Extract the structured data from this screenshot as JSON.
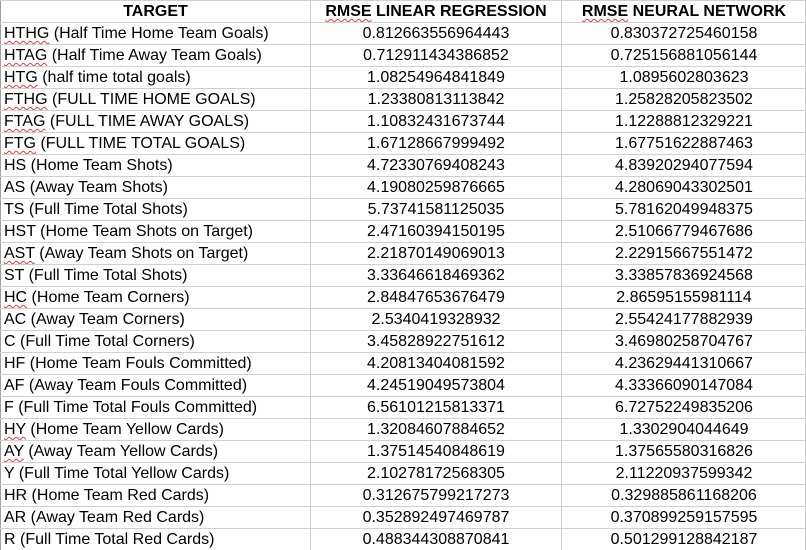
{
  "headers": [
    "TARGET",
    "RMSE LINEAR REGRESSION",
    "RMSE NEURAL NETWORK"
  ],
  "rows": [
    {
      "abbr": "HTHG",
      "desc": " (Half Time Home Team Goals)",
      "lr": "0.812663556964443",
      "nn": "0.830372725460158"
    },
    {
      "abbr": "HTAG",
      "desc": " (Half Time Away Team Goals)",
      "lr": "0.712911434386852",
      "nn": "0.725156881056144"
    },
    {
      "abbr": "HTG",
      "desc": " (half time total goals)",
      "lr": "1.08254964841849",
      "nn": "1.0895602803623"
    },
    {
      "abbr": "FTHG",
      "desc": " (FULL TIME HOME GOALS)",
      "lr": "1.23380813113842",
      "nn": "1.25828205823502"
    },
    {
      "abbr": "FTAG",
      "desc": " (FULL TIME AWAY GOALS)",
      "lr": "1.10832431673744",
      "nn": "1.12288812329221"
    },
    {
      "abbr": "FTG",
      "desc": " (FULL TIME TOTAL GOALS)",
      "lr": "1.67128667999492",
      "nn": "1.67751622887463"
    },
    {
      "abbr": "HS",
      "desc": " (Home Team Shots)",
      "lr": "4.72330769408243",
      "nn": "4.83920294077594"
    },
    {
      "abbr": "AS",
      "desc": " (Away Team Shots)",
      "lr": "4.19080259876665",
      "nn": "4.28069043302501"
    },
    {
      "abbr": "TS",
      "desc": " (Full Time Total Shots)",
      "lr": "5.73741581125035",
      "nn": "5.78162049948375"
    },
    {
      "abbr": "HST",
      "desc": " (Home Team Shots on Target)",
      "lr": "2.47160394150195",
      "nn": "2.51066779467686"
    },
    {
      "abbr": "AST",
      "desc": " (Away Team Shots on Target)",
      "lr": "2.21870149069013",
      "nn": "2.22915667551472"
    },
    {
      "abbr": "ST",
      "desc": " (Full Time Total Shots)",
      "lr": "3.33646618469362",
      "nn": "3.33857836924568"
    },
    {
      "abbr": "HC",
      "desc": " (Home Team Corners)",
      "lr": "2.84847653676479",
      "nn": "2.86595155981114"
    },
    {
      "abbr": "AC",
      "desc": " (Away Team Corners)",
      "lr": "2.5340419328932",
      "nn": "2.55424177882939"
    },
    {
      "abbr": "C",
      "desc": " (Full Time Total Corners)",
      "lr": "3.45828922751612",
      "nn": "3.46980258704767"
    },
    {
      "abbr": "HF",
      "desc": " (Home Team Fouls Committed)",
      "lr": "4.20813404081592",
      "nn": "4.23629441310667"
    },
    {
      "abbr": "AF",
      "desc": " (Away Team Fouls Committed)",
      "lr": "4.24519049573804",
      "nn": "4.33366090147084"
    },
    {
      "abbr": "F",
      "desc": " (Full Time Total Fouls Committed)",
      "lr": "6.56101215813371",
      "nn": "6.72752249835206"
    },
    {
      "abbr": "HY",
      "desc": " (Home Team Yellow Cards)",
      "lr": "1.32084607884652",
      "nn": "1.3302904044649"
    },
    {
      "abbr": "AY",
      "desc": " (Away Team Yellow Cards)",
      "lr": "1.37514540848619",
      "nn": "1.37565580316826"
    },
    {
      "abbr": "Y",
      "desc": " (Full Time Total Yellow Cards)",
      "lr": "2.10278172568305",
      "nn": "2.11220937599342"
    },
    {
      "abbr": "HR",
      "desc": " (Home Team Red Cards)",
      "lr": "0.312675799217273",
      "nn": "0.329885861168206"
    },
    {
      "abbr": "AR",
      "desc": " (Away Team Red Cards)",
      "lr": "0.352892497469787",
      "nn": "0.370899259157595"
    },
    {
      "abbr": "R",
      "desc": " (Full Time Total Red Cards)",
      "lr": "0.488344308870841",
      "nn": "0.501299128842187"
    }
  ],
  "spellcheck_flagged": [
    "HTHG",
    "HTAG",
    "HTG",
    "FTHG",
    "FTAG",
    "FTG",
    "AST",
    "HC",
    "HY",
    "AY",
    "RMSE"
  ],
  "colors": {
    "gridline": "#d0d0d0",
    "column_divider": "#a0a0a0",
    "spellcheck_underline": "#e03c3c",
    "text": "#000000",
    "background": "#ffffff"
  }
}
